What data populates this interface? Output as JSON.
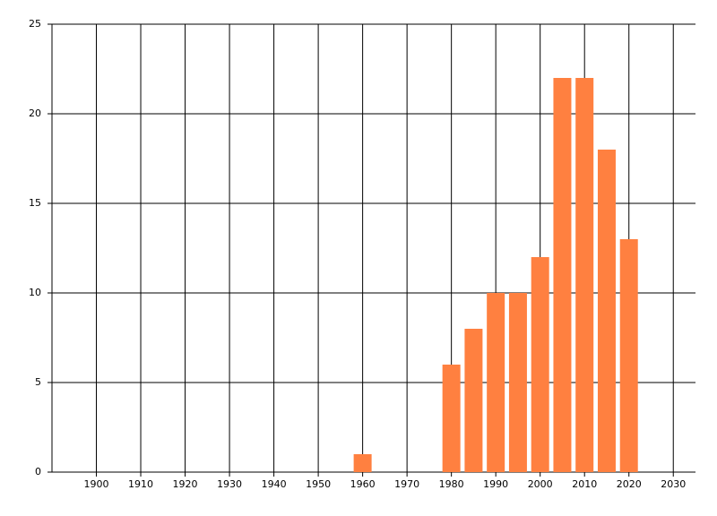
{
  "chart_data": {
    "type": "bar",
    "x": [
      1960,
      1980,
      1985,
      1990,
      1995,
      2000,
      2005,
      2010,
      2015,
      2020
    ],
    "values": [
      1,
      6,
      8,
      10,
      10,
      12,
      22,
      22,
      18,
      13
    ],
    "color": "#ff8040",
    "xlim": [
      1890,
      2035
    ],
    "xticks": [
      1900,
      1910,
      1920,
      1930,
      1940,
      1950,
      1960,
      1970,
      1980,
      1990,
      2000,
      2010,
      2020,
      2030
    ],
    "ylim": [
      0,
      25
    ],
    "yticks": [
      0,
      5,
      10,
      15,
      20,
      25
    ],
    "grid": true
  }
}
